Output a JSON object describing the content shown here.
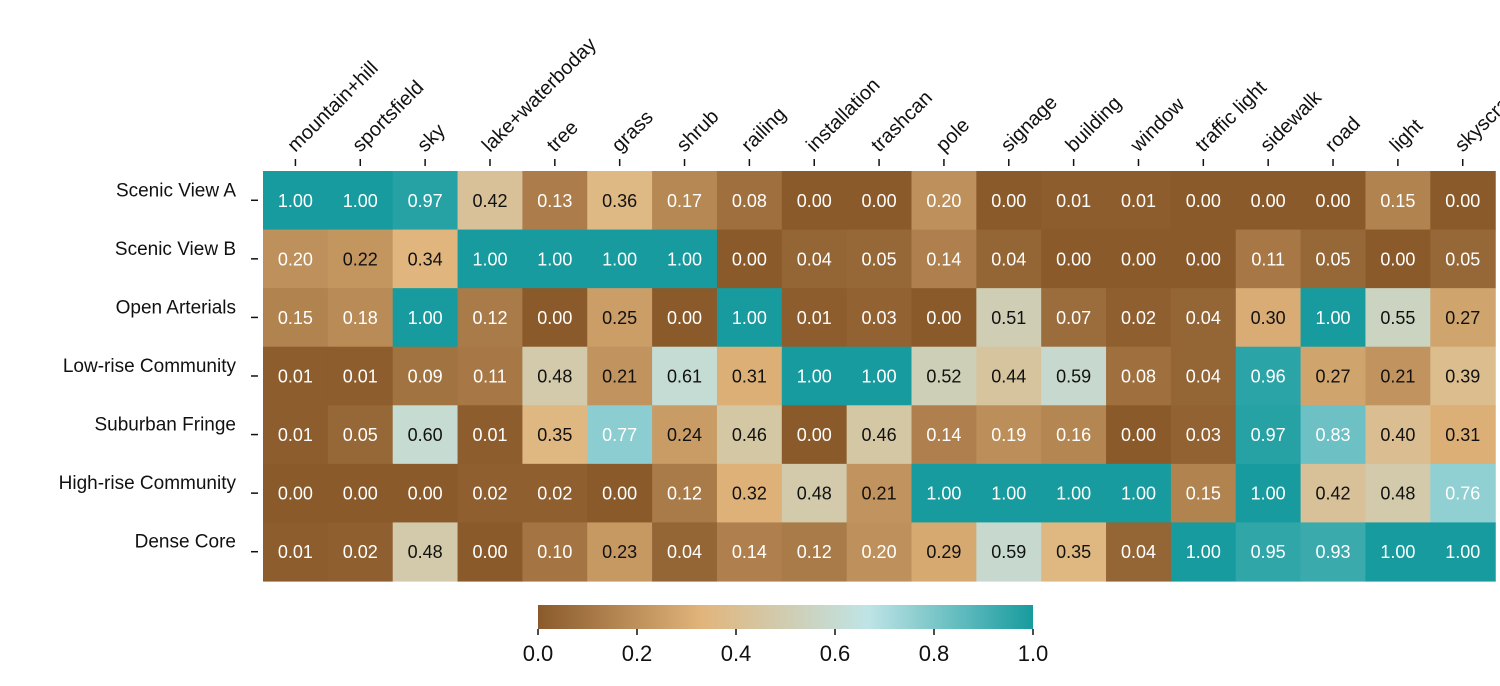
{
  "chart_data": {
    "type": "heatmap",
    "columns": [
      "mountain+hill",
      "sportsfield",
      "sky",
      "lake+waterboday",
      "tree",
      "grass",
      "shrub",
      "railing",
      "installation",
      "trashcan",
      "pole",
      "signage",
      "building",
      "window",
      "traffic light",
      "sidewalk",
      "road",
      "light",
      "skyscraper"
    ],
    "rows": [
      "Scenic View A",
      "Scenic View B",
      "Open Arterials",
      "Low-rise Community",
      "Suburban Fringe",
      "High-rise Community",
      "Dense Core"
    ],
    "values": [
      [
        1.0,
        1.0,
        0.97,
        0.42,
        0.13,
        0.36,
        0.17,
        0.08,
        0.0,
        0.0,
        0.2,
        0.0,
        0.01,
        0.01,
        0.0,
        0.0,
        0.0,
        0.15,
        0.0
      ],
      [
        0.2,
        0.22,
        0.34,
        1.0,
        1.0,
        1.0,
        1.0,
        0.0,
        0.04,
        0.05,
        0.14,
        0.04,
        0.0,
        0.0,
        0.0,
        0.11,
        0.05,
        0.0,
        0.05
      ],
      [
        0.15,
        0.18,
        1.0,
        0.12,
        0.0,
        0.25,
        0.0,
        1.0,
        0.01,
        0.03,
        0.0,
        0.51,
        0.07,
        0.02,
        0.04,
        0.3,
        1.0,
        0.55,
        0.27
      ],
      [
        0.01,
        0.01,
        0.09,
        0.11,
        0.48,
        0.21,
        0.61,
        0.31,
        1.0,
        1.0,
        0.52,
        0.44,
        0.59,
        0.08,
        0.04,
        0.96,
        0.27,
        0.21,
        0.39
      ],
      [
        0.01,
        0.05,
        0.6,
        0.01,
        0.35,
        0.77,
        0.24,
        0.46,
        0.0,
        0.46,
        0.14,
        0.19,
        0.16,
        0.0,
        0.03,
        0.97,
        0.83,
        0.4,
        0.31
      ],
      [
        0.0,
        0.0,
        0.0,
        0.02,
        0.02,
        0.0,
        0.12,
        0.32,
        0.48,
        0.21,
        1.0,
        1.0,
        1.0,
        1.0,
        0.15,
        1.0,
        0.42,
        0.48,
        0.76
      ],
      [
        0.01,
        0.02,
        0.48,
        0.0,
        0.1,
        0.23,
        0.04,
        0.14,
        0.12,
        0.2,
        0.29,
        0.59,
        0.35,
        0.04,
        1.0,
        0.95,
        0.93,
        1.0,
        1.0
      ]
    ],
    "colorbar": {
      "range": [
        0.0,
        1.0
      ],
      "ticks": [
        0.0,
        0.2,
        0.4,
        0.6,
        0.8,
        1.0
      ],
      "tick_labels": [
        "0.0",
        "0.2",
        "0.4",
        "0.6",
        "0.8",
        "1.0"
      ],
      "colors": [
        "#8a5a2b",
        "#e1b57c",
        "#bfe4e6",
        "#179b9e"
      ]
    },
    "text_colors": {
      "dark": "#111111",
      "light": "#ffffff"
    }
  }
}
